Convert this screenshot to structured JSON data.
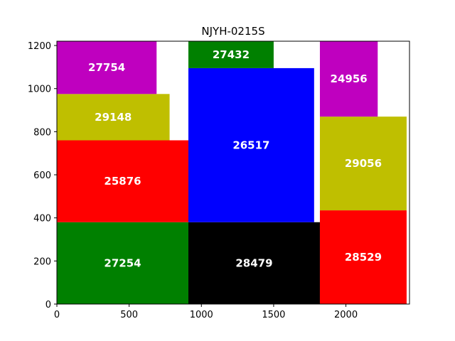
{
  "chart_data": {
    "type": "treemap",
    "title": "NJYH-0215S",
    "xlim": [
      0,
      2440
    ],
    "ylim": [
      0,
      1220
    ],
    "xticks": [
      0,
      500,
      1000,
      1500,
      2000
    ],
    "yticks": [
      0,
      200,
      400,
      600,
      800,
      1000,
      1200
    ],
    "grid": false,
    "boxes": [
      {
        "label": "27254",
        "x0": 0,
        "x1": 910,
        "y0": 0,
        "y1": 380,
        "color": "#008000"
      },
      {
        "label": "25876",
        "x0": 0,
        "x1": 910,
        "y0": 380,
        "y1": 760,
        "color": "#ff0000"
      },
      {
        "label": "29148",
        "x0": 0,
        "x1": 780,
        "y0": 760,
        "y1": 975,
        "color": "#bfbf00"
      },
      {
        "label": "27754",
        "x0": 0,
        "x1": 690,
        "y0": 975,
        "y1": 1220,
        "color": "#bf00bf"
      },
      {
        "label": "28479",
        "x0": 910,
        "x1": 1820,
        "y0": 0,
        "y1": 380,
        "color": "#000000"
      },
      {
        "label": "26517",
        "x0": 910,
        "x1": 1780,
        "y0": 380,
        "y1": 1095,
        "color": "#0000ff"
      },
      {
        "label": "27432",
        "x0": 910,
        "x1": 1500,
        "y0": 1095,
        "y1": 1220,
        "color": "#008000"
      },
      {
        "label": "28529",
        "x0": 1820,
        "x1": 2420,
        "y0": 0,
        "y1": 435,
        "color": "#ff0000"
      },
      {
        "label": "29056",
        "x0": 1820,
        "x1": 2420,
        "y0": 435,
        "y1": 870,
        "color": "#bfbf00"
      },
      {
        "label": "24956",
        "x0": 1820,
        "x1": 2220,
        "y0": 870,
        "y1": 1220,
        "color": "#bf00bf"
      }
    ]
  }
}
